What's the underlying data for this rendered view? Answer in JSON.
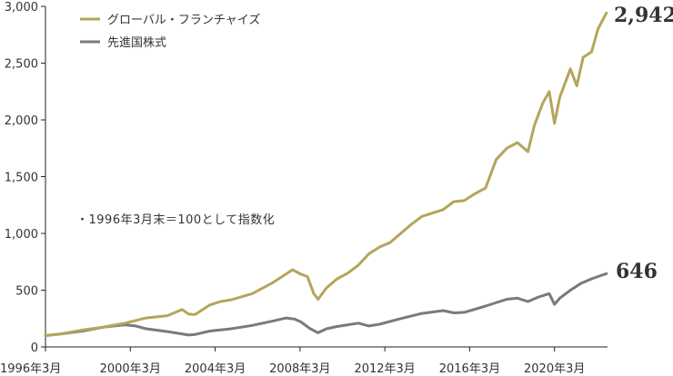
{
  "chart_data": {
    "type": "line",
    "title": "",
    "xlabel": "",
    "ylabel": "",
    "ylim": [
      0,
      3000
    ],
    "y_ticks": [
      "3,000",
      "2,500",
      "2,000",
      "1,500",
      "1,000",
      "500",
      "0"
    ],
    "x_ticks": [
      "1996年3月",
      "2000年3月",
      "2004年3月",
      "2008年3月",
      "2012年3月",
      "2016年3月",
      "2020年3月"
    ],
    "note": "・1996年3月末＝100として指数化",
    "legend_position": "top-left",
    "series": [
      {
        "name": "グローバル・フランチャイズ",
        "color": "#b5a55a",
        "end_label": "2,942",
        "points": [
          [
            1996.25,
            100
          ],
          [
            1997.0,
            115
          ],
          [
            1998.0,
            150
          ],
          [
            1999.0,
            175
          ],
          [
            2000.0,
            210
          ],
          [
            2001.0,
            255
          ],
          [
            2002.0,
            275
          ],
          [
            2002.7,
            330
          ],
          [
            2003.0,
            290
          ],
          [
            2003.3,
            285
          ],
          [
            2004.0,
            370
          ],
          [
            2004.5,
            400
          ],
          [
            2005.0,
            415
          ],
          [
            2006.0,
            470
          ],
          [
            2007.0,
            570
          ],
          [
            2007.9,
            680
          ],
          [
            2008.3,
            640
          ],
          [
            2008.6,
            620
          ],
          [
            2008.9,
            470
          ],
          [
            2009.1,
            420
          ],
          [
            2009.5,
            520
          ],
          [
            2010.0,
            600
          ],
          [
            2010.5,
            650
          ],
          [
            2011.0,
            720
          ],
          [
            2011.5,
            820
          ],
          [
            2012.0,
            880
          ],
          [
            2012.5,
            920
          ],
          [
            2013.0,
            1000
          ],
          [
            2013.5,
            1080
          ],
          [
            2014.0,
            1150
          ],
          [
            2015.0,
            1210
          ],
          [
            2015.5,
            1280
          ],
          [
            2016.0,
            1290
          ],
          [
            2016.5,
            1350
          ],
          [
            2017.0,
            1400
          ],
          [
            2017.5,
            1650
          ],
          [
            2018.0,
            1750
          ],
          [
            2018.5,
            1800
          ],
          [
            2019.0,
            1720
          ],
          [
            2019.3,
            1950
          ],
          [
            2019.7,
            2150
          ],
          [
            2020.0,
            2250
          ],
          [
            2020.25,
            1970
          ],
          [
            2020.5,
            2200
          ],
          [
            2021.0,
            2450
          ],
          [
            2021.3,
            2300
          ],
          [
            2021.6,
            2550
          ],
          [
            2022.0,
            2600
          ],
          [
            2022.3,
            2800
          ],
          [
            2022.7,
            2942
          ]
        ]
      },
      {
        "name": "先進国株式",
        "color": "#7a7a7a",
        "end_label": "646",
        "points": [
          [
            1996.25,
            100
          ],
          [
            1997.0,
            115
          ],
          [
            1998.0,
            140
          ],
          [
            1999.0,
            175
          ],
          [
            2000.0,
            195
          ],
          [
            2000.5,
            185
          ],
          [
            2001.0,
            160
          ],
          [
            2002.0,
            135
          ],
          [
            2002.5,
            120
          ],
          [
            2003.0,
            105
          ],
          [
            2003.3,
            110
          ],
          [
            2004.0,
            140
          ],
          [
            2005.0,
            160
          ],
          [
            2006.0,
            190
          ],
          [
            2007.0,
            230
          ],
          [
            2007.6,
            255
          ],
          [
            2008.0,
            245
          ],
          [
            2008.3,
            220
          ],
          [
            2008.7,
            165
          ],
          [
            2009.1,
            125
          ],
          [
            2009.5,
            160
          ],
          [
            2010.0,
            180
          ],
          [
            2011.0,
            210
          ],
          [
            2011.5,
            185
          ],
          [
            2012.0,
            200
          ],
          [
            2013.0,
            250
          ],
          [
            2014.0,
            295
          ],
          [
            2015.0,
            320
          ],
          [
            2015.5,
            300
          ],
          [
            2016.0,
            305
          ],
          [
            2017.0,
            360
          ],
          [
            2018.0,
            420
          ],
          [
            2018.5,
            430
          ],
          [
            2019.0,
            400
          ],
          [
            2019.5,
            440
          ],
          [
            2020.0,
            470
          ],
          [
            2020.25,
            375
          ],
          [
            2020.5,
            430
          ],
          [
            2021.0,
            500
          ],
          [
            2021.5,
            560
          ],
          [
            2022.0,
            600
          ],
          [
            2022.3,
            620
          ],
          [
            2022.7,
            646
          ]
        ]
      }
    ]
  }
}
